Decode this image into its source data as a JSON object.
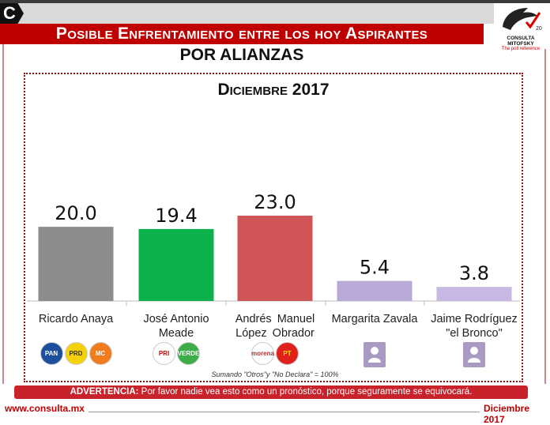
{
  "header": {
    "badge": "C",
    "title": "Posible Enfrentamiento entre los hoy Aspirantes",
    "subtitle": "POR ALIANZAS",
    "logo_text": "CONSULTA MITOFSKY",
    "logo_tagline": "The poll reference",
    "logo_badge": "20"
  },
  "chart_data": {
    "type": "bar",
    "title": "Diciembre 2017",
    "categories": [
      "Ricardo Anaya",
      "José Antonio Meade",
      "Andrés  Manuel López  Obrador",
      "Margarita Zavala",
      "Jaime Rodríguez \"el Bronco\""
    ],
    "values": [
      20.0,
      19.4,
      23.0,
      5.4,
      3.8
    ],
    "labels": [
      "20.0",
      "19.4",
      "23.0",
      "5.4",
      "3.8"
    ],
    "colors": [
      "#8c8c8c",
      "#0cb14b",
      "#cf5556",
      "#b9a9d9",
      "#c7b9e3"
    ],
    "ylim": [
      0,
      23
    ],
    "grid": false,
    "party_logos": [
      [
        "PAN",
        "PRD",
        "MC"
      ],
      [
        "PRI",
        "VERDE"
      ],
      [
        "morena",
        "PT"
      ],
      [
        "CANDIDATURA INDEPENDIENTE"
      ],
      [
        "CANDIDATURA INDEPENDIENTE"
      ]
    ]
  },
  "footnote": "Sumando  \"Otros\"y \"No Declara\" = 100%",
  "warning": {
    "label": "ADVERTENCIA:",
    "text": " Por favor nadie vea esto como un pronóstico, porque seguramente se equivocará."
  },
  "footer": {
    "url": "www.consulta.mx",
    "date": "Diciembre 2017"
  }
}
